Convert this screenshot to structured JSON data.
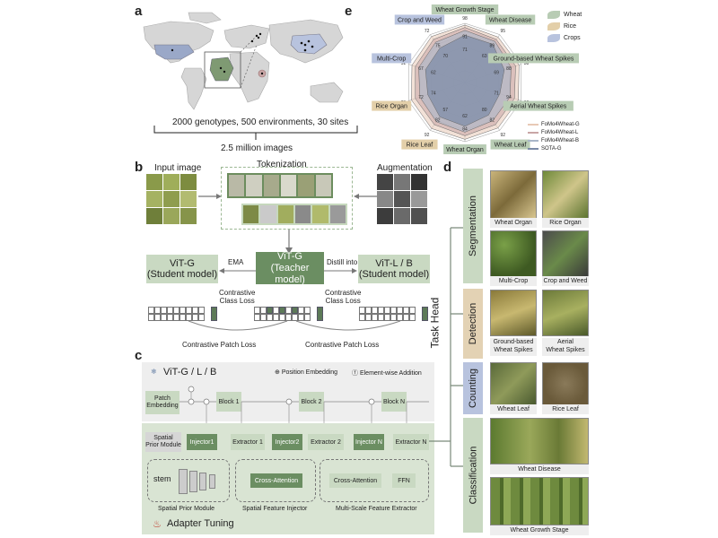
{
  "panels": {
    "a": "a",
    "b": "b",
    "c": "c",
    "d": "d",
    "e": "e"
  },
  "map": {
    "stat_line": "2000 genotypes, 500 environments, 30 sites",
    "images": "2.5 million  images"
  },
  "tokenization": {
    "title": "Tokenization",
    "input_image": "Input image",
    "augmentation": "Augmentation"
  },
  "models": {
    "student_left": "ViT-G\n(Student model)",
    "teacher": "ViT-G\n(Teacher model)",
    "student_right": "ViT-L / B\n(Student model)",
    "ema": "EMA",
    "distill": "Distill into",
    "class_loss_left": "Contrastive\nClass Loss",
    "class_loss_right": "Contrastive\nClass Loss",
    "patch_loss_left": "Contrastive Patch Loss",
    "patch_loss_right": "Contrastive Patch Loss"
  },
  "adapter": {
    "backbone": "ViT-G / L / B",
    "legend_pos": "Position Embedding",
    "legend_add": "Element-wise Addition",
    "patch_embedding": "Patch\nEmbedding",
    "block1": "Block 1",
    "block2": "Block 2",
    "blockn": "Block N",
    "spm": "Spatial\nPrior Module",
    "injector1": "Injector1",
    "extractor1": "Extractor 1",
    "injector2": "Injector2",
    "extractor2": "Extractor 2",
    "injectorn": "Injector N",
    "extractorn": "Extractor N",
    "stem": "stem",
    "cross_attn1": "Cross-Attention",
    "cross_attn2": "Cross-Attention",
    "ffn": "FFN",
    "spm_caption": "Spatial Prior Module",
    "sfi_caption": "Spatial Feature Injector",
    "msfe_caption": "Multi-Scale Feature Extractor",
    "adapter_tuning": "Adapter Tuning"
  },
  "tasks": {
    "task_head": "Task Head",
    "segmentation": "Segmentation",
    "detection": "Detection",
    "counting": "Counting",
    "classification": "Classification",
    "items": [
      "Wheat Organ",
      "Rice Organ",
      "Multi-Crop",
      "Crop and Weed",
      "Ground-based\nWheat Spikes",
      "Aerial\nWheat Spikes",
      "Wheat Leaf",
      "Rice Leaf",
      "Wheat Disease",
      "Wheat Growth Stage"
    ]
  },
  "radar": {
    "axes": [
      "Wheat Growth Stage",
      "Wheat Disease",
      "Ground-based Wheat Spikes",
      "Aerial Wheat Spikes",
      "Wheat Leaf",
      "Wheat Organ",
      "Rice Leaf",
      "Rice Organ",
      "Multi-Crop",
      "Crop and Weed"
    ],
    "axis_max": [
      "98",
      "95",
      "38",
      "32",
      "92",
      "92",
      "92",
      "76",
      "92",
      "72"
    ],
    "axis_colors": [
      "#b8ccb4",
      "#b8ccb4",
      "#b8ccb4",
      "#b8ccb4",
      "#b8ccb4",
      "#b8ccb4",
      "#e3cfa9",
      "#e3cfa9",
      "#b8c3de",
      "#b8c3de"
    ],
    "inner_labels": [
      "91",
      "89",
      "88",
      "94",
      "82",
      "84",
      "82",
      "72",
      "67",
      "75",
      "71",
      "63",
      "69",
      "71",
      "80",
      "62",
      "57",
      "74",
      "62",
      "70"
    ],
    "legend_types": [
      "Wheat",
      "Rice",
      "Crops"
    ],
    "legend_type_colors": [
      "#b8ccb4",
      "#e3cfa9",
      "#b8c3de"
    ],
    "legend_models": [
      "FoMo4Wheat-G",
      "FoMo4Wheat-L",
      "FoMo4Wheat-B",
      "SOTA-G"
    ],
    "legend_model_colors": [
      "#e8c9b6",
      "#c9a6a6",
      "#a9b6c9",
      "#7a8aa6"
    ]
  },
  "chart_data": {
    "type": "radar",
    "axes": [
      "Wheat Growth Stage",
      "Wheat Disease",
      "Ground-based Wheat Spikes",
      "Aerial Wheat Spikes",
      "Wheat Leaf",
      "Wheat Organ",
      "Rice Leaf",
      "Rice Organ",
      "Multi-Crop",
      "Crop and Weed"
    ],
    "series": [
      {
        "name": "FoMo4Wheat-G",
        "values": [
          0.97,
          0.95,
          0.96,
          0.95,
          0.95,
          0.96,
          0.96,
          0.95,
          0.94,
          0.96
        ]
      },
      {
        "name": "FoMo4Wheat-L",
        "values": [
          0.93,
          0.9,
          0.9,
          0.88,
          0.88,
          0.9,
          0.88,
          0.88,
          0.88,
          0.9
        ]
      },
      {
        "name": "FoMo4Wheat-B",
        "values": [
          0.88,
          0.86,
          0.82,
          0.8,
          0.8,
          0.84,
          0.82,
          0.8,
          0.82,
          0.84
        ]
      },
      {
        "name": "SOTA-G",
        "values": [
          0.8,
          0.8,
          0.7,
          0.62,
          0.68,
          0.74,
          0.72,
          0.66,
          0.7,
          0.72
        ]
      }
    ],
    "legend": "top-right"
  },
  "colors": {
    "green_dark": "#6b8e62",
    "green_mid": "#8fae86",
    "green_light": "#c9d9c2",
    "tan": "#e3d2b4",
    "blue_tab": "#b8c3de",
    "panel_bg": "#eef2ec",
    "gray_bg": "#eeeeee"
  }
}
